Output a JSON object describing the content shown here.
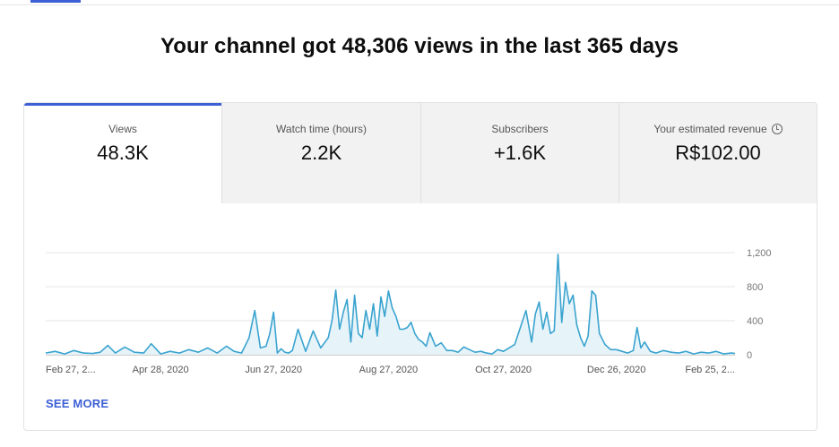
{
  "headline": "Your channel got 48,306 views in the last 365 days",
  "tabs": [
    {
      "label": "Views",
      "value": "48.3K",
      "active": true
    },
    {
      "label": "Watch time (hours)",
      "value": "2.2K",
      "active": false
    },
    {
      "label": "Subscribers",
      "value": "+1.6K",
      "active": false
    },
    {
      "label": "Your estimated revenue",
      "value": "R$102.00",
      "active": false,
      "icon": "clock-icon"
    }
  ],
  "see_more": "SEE MORE",
  "colors": {
    "accent": "#3c5fd6",
    "line": "#3aa3cf",
    "fill": "#e6f4fa"
  },
  "chart_data": {
    "type": "area",
    "title": "",
    "xlabel": "",
    "ylabel": "",
    "ylim": [
      0,
      1200
    ],
    "y_ticks": [
      "1,200",
      "800",
      "400",
      "0"
    ],
    "y_tick_values": [
      1200,
      800,
      400,
      0
    ],
    "x_tick_labels": [
      "Feb 27, 2...",
      "Apr 28, 2020",
      "Jun 27, 2020",
      "Aug 27, 2020",
      "Oct 27, 2020",
      "Dec 26, 2020",
      "Feb 25, 2..."
    ],
    "x_tick_dates": [
      "2020-02-27",
      "2020-04-28",
      "2020-06-27",
      "2020-08-27",
      "2020-10-27",
      "2020-12-26",
      "2021-02-25"
    ],
    "y_axis_side": "right",
    "grid": true,
    "series": [
      {
        "x": [
          "2020-02-27",
          "2020-03-03",
          "2020-03-08",
          "2020-03-13",
          "2020-03-18",
          "2020-03-23",
          "2020-03-27",
          "2020-03-31",
          "2020-04-04",
          "2020-04-09",
          "2020-04-14",
          "2020-04-19",
          "2020-04-23",
          "2020-04-28",
          "2020-05-03",
          "2020-05-08",
          "2020-05-13",
          "2020-05-18",
          "2020-05-23",
          "2020-05-28",
          "2020-06-02",
          "2020-06-06",
          "2020-06-10",
          "2020-06-14",
          "2020-06-17",
          "2020-06-20",
          "2020-06-23",
          "2020-06-25",
          "2020-06-27",
          "2020-06-29",
          "2020-07-01",
          "2020-07-03",
          "2020-07-05",
          "2020-07-07",
          "2020-07-10",
          "2020-07-14",
          "2020-07-18",
          "2020-07-22",
          "2020-07-26",
          "2020-07-28",
          "2020-07-30",
          "2020-08-01",
          "2020-08-03",
          "2020-08-05",
          "2020-08-07",
          "2020-08-09",
          "2020-08-11",
          "2020-08-13",
          "2020-08-15",
          "2020-08-17",
          "2020-08-19",
          "2020-08-21",
          "2020-08-23",
          "2020-08-25",
          "2020-08-27",
          "2020-08-29",
          "2020-08-31",
          "2020-09-02",
          "2020-09-04",
          "2020-09-06",
          "2020-09-08",
          "2020-09-10",
          "2020-09-12",
          "2020-09-14",
          "2020-09-16",
          "2020-09-18",
          "2020-09-21",
          "2020-09-24",
          "2020-09-27",
          "2020-09-30",
          "2020-10-03",
          "2020-10-06",
          "2020-10-09",
          "2020-10-12",
          "2020-10-15",
          "2020-10-18",
          "2020-10-21",
          "2020-10-24",
          "2020-10-27",
          "2020-10-30",
          "2020-11-02",
          "2020-11-05",
          "2020-11-08",
          "2020-11-11",
          "2020-11-13",
          "2020-11-15",
          "2020-11-17",
          "2020-11-19",
          "2020-11-21",
          "2020-11-23",
          "2020-11-25",
          "2020-11-27",
          "2020-11-29",
          "2020-12-01",
          "2020-12-03",
          "2020-12-05",
          "2020-12-07",
          "2020-12-09",
          "2020-12-11",
          "2020-12-13",
          "2020-12-15",
          "2020-12-17",
          "2020-12-20",
          "2020-12-23",
          "2020-12-26",
          "2020-12-29",
          "2021-01-01",
          "2021-01-04",
          "2021-01-06",
          "2021-01-08",
          "2021-01-10",
          "2021-01-13",
          "2021-01-16",
          "2021-01-20",
          "2021-01-24",
          "2021-01-28",
          "2021-02-01",
          "2021-02-05",
          "2021-02-09",
          "2021-02-13",
          "2021-02-17",
          "2021-02-21",
          "2021-02-25",
          "2021-02-27"
        ],
        "values": [
          20,
          40,
          10,
          50,
          20,
          15,
          30,
          110,
          20,
          90,
          30,
          20,
          130,
          10,
          40,
          20,
          60,
          30,
          80,
          20,
          100,
          40,
          20,
          200,
          520,
          80,
          100,
          250,
          500,
          20,
          70,
          30,
          20,
          50,
          300,
          40,
          280,
          80,
          200,
          400,
          760,
          300,
          500,
          650,
          150,
          700,
          250,
          200,
          520,
          300,
          600,
          220,
          680,
          450,
          750,
          550,
          450,
          300,
          300,
          320,
          380,
          250,
          180,
          150,
          100,
          260,
          100,
          140,
          50,
          50,
          30,
          90,
          60,
          30,
          40,
          20,
          10,
          60,
          40,
          80,
          120,
          320,
          520,
          150,
          480,
          620,
          300,
          500,
          250,
          280,
          1180,
          380,
          850,
          600,
          700,
          350,
          200,
          100,
          220,
          750,
          700,
          250,
          120,
          60,
          60,
          40,
          20,
          50,
          320,
          80,
          150,
          40,
          20,
          50,
          30,
          20,
          40,
          10,
          30,
          20,
          40,
          10,
          20,
          15
        ]
      }
    ]
  }
}
